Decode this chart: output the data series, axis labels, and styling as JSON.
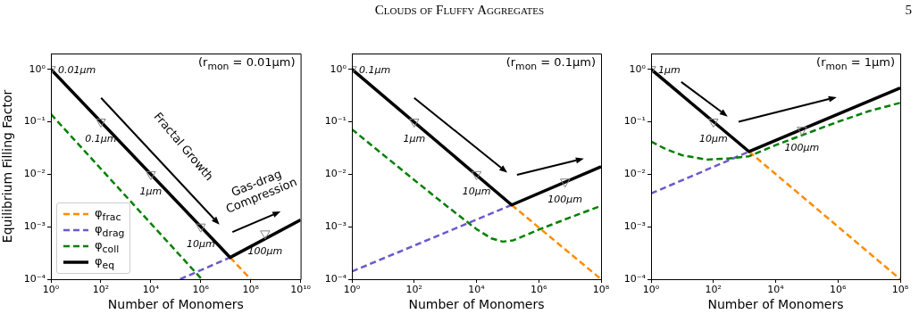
{
  "chart_data": [
    {
      "type": "other",
      "title": "Clouds of Fluffy Aggregates",
      "annotations": [
        "5"
      ]
    },
    {
      "type": "line",
      "title": "(r$_{mon}$ = 0.01μm)",
      "xlabel": "Number of Monomers",
      "ylabel": "Equilibrium Filling Factor",
      "log": "xy",
      "legend": "bottom left",
      "grid": false,
      "xlim": [
        1,
        10000000000
      ],
      "xticks": [
        {
          "value": 1,
          "label": "10⁰"
        },
        {
          "value": 100,
          "label": "10²"
        },
        {
          "value": 10000,
          "label": "10⁴"
        },
        {
          "value": 1000000,
          "label": "10⁶"
        },
        {
          "value": 100000000,
          "label": "10⁸"
        },
        {
          "value": 10000000000,
          "label": "10¹⁰"
        }
      ],
      "ylim": [
        0.0001,
        2
      ],
      "yticks": [
        {
          "value": 0.0001,
          "label": "10⁻⁴"
        },
        {
          "value": 0.001,
          "label": "10⁻³"
        },
        {
          "value": 0.01,
          "label": "10⁻²"
        },
        {
          "value": 0.1,
          "label": "10⁻¹"
        },
        {
          "value": 1,
          "label": "10⁰"
        }
      ],
      "series": [
        {
          "name": "φ$_{frac}$",
          "color": "#ff8c00",
          "line_style": "dashed",
          "x": [
            15000000,
            100000000
          ],
          "values": [
            0.00026,
            0.0001
          ]
        },
        {
          "name": "φ$_{drag}$",
          "color": "#6a5acd",
          "line_style": "dashed",
          "x": [
            150000,
            15000000
          ],
          "values": [
            0.0001,
            0.00026
          ]
        },
        {
          "name": "φ$_{coll}$",
          "color": "#008000",
          "line_style": "dashed",
          "x": [
            1,
            1100000
          ],
          "values": [
            0.14,
            0.0001
          ]
        },
        {
          "name": "φ$_{eq}$",
          "color": "#000000",
          "line_style": "solid",
          "x": [
            1,
            15000000,
            10000000000
          ],
          "values": [
            1,
            0.00026,
            0.00135
          ]
        },
        {
          "type": "scatter",
          "color": "#808080",
          "marker": "triangle",
          "x": [
            1,
            100,
            10000,
            1000000,
            380000000
          ],
          "values": [
            1,
            0.1,
            0.01,
            0.001,
            0.00074
          ]
        }
      ],
      "annotations": [
        {
          "text": "0.01μm",
          "x": 1,
          "y": 1
        },
        {
          "text": "0.1μm",
          "x": 100,
          "y": 0.1
        },
        {
          "text": "1μm",
          "x": 10000,
          "y": 0.01
        },
        {
          "text": "10μm",
          "x": 1000000,
          "y": 0.001
        },
        {
          "text": "100μm",
          "x": 380000000,
          "y": 0.00074
        },
        "Fractal Growth",
        "Gas-drag Compression"
      ]
    },
    {
      "type": "line",
      "title": "(r$_{mon}$ = 0.1μm)",
      "xlabel": "Number of Monomers",
      "log": "xy",
      "grid": false,
      "xlim": [
        1,
        100000000
      ],
      "xticks": [
        {
          "value": 1,
          "label": "10⁰"
        },
        {
          "value": 100,
          "label": "10²"
        },
        {
          "value": 10000,
          "label": "10⁴"
        },
        {
          "value": 1000000,
          "label": "10⁶"
        },
        {
          "value": 100000000,
          "label": "10⁸"
        }
      ],
      "ylim": [
        0.0001,
        2
      ],
      "yticks": [
        {
          "value": 0.0001,
          "label": "10⁻⁴"
        },
        {
          "value": 0.001,
          "label": "10⁻³"
        },
        {
          "value": 0.01,
          "label": "10⁻²"
        },
        {
          "value": 0.1,
          "label": "10⁻¹"
        },
        {
          "value": 1,
          "label": "10⁰"
        }
      ],
      "series": [
        {
          "color": "#ff8c00",
          "line_style": "dashed",
          "x": [
            135000,
            100000000
          ],
          "values": [
            0.0026,
            0.0001
          ]
        },
        {
          "color": "#6a5acd",
          "line_style": "dashed",
          "x": [
            1,
            135000
          ],
          "values": [
            0.00014,
            0.0026
          ]
        },
        {
          "color": "#008000",
          "line_style": "dashed",
          "x": [
            1,
            100,
            1000,
            10000,
            30000,
            70000,
            150000,
            400000,
            1000000,
            10000000,
            100000000
          ],
          "values": [
            0.072,
            0.0078,
            0.0026,
            0.0009,
            0.0006,
            0.00052,
            0.00055,
            0.0007,
            0.00088,
            0.0015,
            0.0025
          ]
        },
        {
          "color": "#000000",
          "line_style": "solid",
          "x": [
            1,
            135000,
            100000000
          ],
          "values": [
            1,
            0.0026,
            0.014
          ]
        },
        {
          "type": "scatter",
          "color": "#808080",
          "marker": "triangle",
          "x": [
            1,
            100,
            10000,
            7000000
          ],
          "values": [
            1,
            0.1,
            0.01,
            0.0072
          ]
        }
      ],
      "annotations": [
        {
          "text": "0.1μm",
          "x": 1,
          "y": 1
        },
        {
          "text": "1μm",
          "x": 100,
          "y": 0.1
        },
        {
          "text": "10μm",
          "x": 10000,
          "y": 0.01
        },
        {
          "text": "100μm",
          "x": 7000000,
          "y": 0.0072
        }
      ]
    },
    {
      "type": "line",
      "title": "(r$_{mon}$ = 1μm)",
      "xlabel": "Number of Monomers",
      "log": "xy",
      "grid": false,
      "xlim": [
        1,
        100000000
      ],
      "xticks": [
        {
          "value": 1,
          "label": "10⁰"
        },
        {
          "value": 100,
          "label": "10²"
        },
        {
          "value": 10000,
          "label": "10⁴"
        },
        {
          "value": 1000000,
          "label": "10⁶"
        },
        {
          "value": 100000000,
          "label": "10⁸"
        }
      ],
      "ylim": [
        0.0001,
        2
      ],
      "yticks": [
        {
          "value": 0.0001,
          "label": "10⁻⁴"
        },
        {
          "value": 0.001,
          "label": "10⁻³"
        },
        {
          "value": 0.01,
          "label": "10⁻²"
        },
        {
          "value": 0.1,
          "label": "10⁻¹"
        },
        {
          "value": 1,
          "label": "10⁰"
        }
      ],
      "series": [
        {
          "color": "#ff8c00",
          "line_style": "dashed",
          "x": [
            1400,
            100000000
          ],
          "values": [
            0.027,
            0.0001
          ]
        },
        {
          "color": "#6a5acd",
          "line_style": "dashed",
          "x": [
            1,
            1400
          ],
          "values": [
            0.0043,
            0.027
          ]
        },
        {
          "color": "#008000",
          "line_style": "dashed",
          "x": [
            1,
            3,
            10,
            60,
            300,
            1400,
            10000,
            100000,
            1000000,
            10000000,
            100000000
          ],
          "values": [
            0.042,
            0.03,
            0.023,
            0.019,
            0.02,
            0.022,
            0.036,
            0.06,
            0.1,
            0.16,
            0.23
          ]
        },
        {
          "color": "#000000",
          "line_style": "solid",
          "x": [
            1,
            1400,
            100000000
          ],
          "values": [
            1,
            0.027,
            0.44
          ]
        },
        {
          "type": "scatter",
          "color": "#808080",
          "marker": "triangle",
          "x": [
            1,
            100,
            70000
          ],
          "values": [
            1,
            0.1,
            0.07
          ]
        }
      ],
      "annotations": [
        {
          "text": "1μm",
          "x": 1,
          "y": 1
        },
        {
          "text": "10μm",
          "x": 100,
          "y": 0.1
        },
        {
          "text": "100μm",
          "x": 70000,
          "y": 0.07
        }
      ]
    }
  ]
}
